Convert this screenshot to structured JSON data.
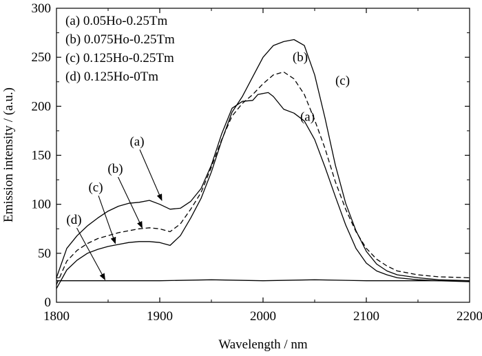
{
  "chart_data": {
    "type": "line",
    "title": "",
    "xlabel": "Wavelength / nm",
    "ylabel": "Emission intensity / (a.u.)",
    "xlim": [
      1800,
      2200
    ],
    "ylim": [
      0,
      300
    ],
    "xticks": [
      1800,
      1900,
      2000,
      2100,
      2200
    ],
    "yticks": [
      0,
      50,
      100,
      150,
      200,
      250,
      300
    ],
    "grid": false,
    "legend": {
      "placement": "top-left",
      "entries": [
        "(a) 0.05Ho-0.25Tm",
        "(b) 0.075Ho-0.25Tm",
        "(c) 0.125Ho-0.25Tm",
        "(d) 0.125Ho-0Tm"
      ]
    },
    "series": [
      {
        "name": "(a) 0.05Ho-0.25Tm",
        "label": "(a)",
        "style": "solid",
        "x": [
          1800,
          1810,
          1820,
          1830,
          1840,
          1850,
          1860,
          1870,
          1880,
          1890,
          1900,
          1910,
          1920,
          1930,
          1940,
          1950,
          1960,
          1970,
          1980,
          1990,
          1995,
          2000,
          2005,
          2010,
          2020,
          2030,
          2040,
          2050,
          2060,
          2070,
          2080,
          2090,
          2100,
          2110,
          2120,
          2130,
          2150,
          2170,
          2200
        ],
        "y": [
          25,
          55,
          68,
          78,
          86,
          93,
          98,
          101,
          102,
          104,
          100,
          95,
          96,
          103,
          116,
          140,
          172,
          198,
          205,
          206,
          212,
          213,
          214,
          210,
          197,
          193,
          185,
          166,
          138,
          108,
          79,
          55,
          40,
          32,
          28,
          25,
          23,
          22,
          21
        ]
      },
      {
        "name": "(b) 0.075Ho-0.25Tm",
        "label": "(b)",
        "style": "dashed",
        "x": [
          1800,
          1810,
          1820,
          1830,
          1840,
          1850,
          1860,
          1870,
          1880,
          1890,
          1900,
          1910,
          1920,
          1930,
          1940,
          1950,
          1960,
          1970,
          1980,
          1990,
          2000,
          2010,
          2020,
          2030,
          2040,
          2050,
          2060,
          2070,
          2080,
          2090,
          2100,
          2110,
          2120,
          2130,
          2150,
          2170,
          2200
        ],
        "y": [
          18,
          42,
          53,
          60,
          65,
          68,
          71,
          73,
          75,
          76,
          75,
          72,
          80,
          95,
          112,
          138,
          166,
          190,
          203,
          212,
          223,
          232,
          235,
          228,
          212,
          186,
          157,
          123,
          95,
          72,
          55,
          44,
          37,
          32,
          28,
          26,
          25
        ]
      },
      {
        "name": "(c) 0.125Ho-0.25Tm",
        "label": "(c)",
        "style": "solid",
        "x": [
          1800,
          1810,
          1820,
          1830,
          1840,
          1850,
          1860,
          1870,
          1880,
          1890,
          1900,
          1910,
          1920,
          1930,
          1940,
          1950,
          1960,
          1970,
          1980,
          1990,
          2000,
          2010,
          2020,
          2030,
          2040,
          2050,
          2060,
          2070,
          2080,
          2090,
          2100,
          2110,
          2120,
          2130,
          2150,
          2170,
          2200
        ],
        "y": [
          14,
          33,
          43,
          50,
          54,
          57,
          59,
          61,
          62,
          62,
          61,
          58,
          68,
          86,
          106,
          133,
          165,
          194,
          210,
          230,
          250,
          262,
          266,
          268,
          262,
          232,
          188,
          140,
          101,
          73,
          52,
          39,
          32,
          28,
          25,
          23,
          22
        ]
      },
      {
        "name": "(d) 0.125Ho-0Tm",
        "label": "(d)",
        "style": "solid",
        "x": [
          1800,
          1850,
          1900,
          1950,
          2000,
          2050,
          2100,
          2150,
          2200
        ],
        "y": [
          22,
          22,
          22,
          23,
          22,
          23,
          22,
          22,
          22
        ]
      }
    ],
    "annotations": [
      {
        "text": "(a)",
        "x": 1878,
        "y": 160,
        "ax": 1902,
        "ay": 104
      },
      {
        "text": "(b)",
        "x": 1857,
        "y": 132,
        "ax": 1883,
        "ay": 76
      },
      {
        "text": "(c)",
        "x": 1838,
        "y": 113,
        "ax": 1857,
        "ay": 60
      },
      {
        "text": "(d)",
        "x": 1817,
        "y": 80,
        "ax": 1847,
        "ay": 23
      }
    ],
    "curve_labels": [
      {
        "text": "(b)",
        "x": 2036,
        "y": 246
      },
      {
        "text": "(c)",
        "x": 2077,
        "y": 222
      },
      {
        "text": "(a)",
        "x": 2043,
        "y": 185
      }
    ]
  }
}
